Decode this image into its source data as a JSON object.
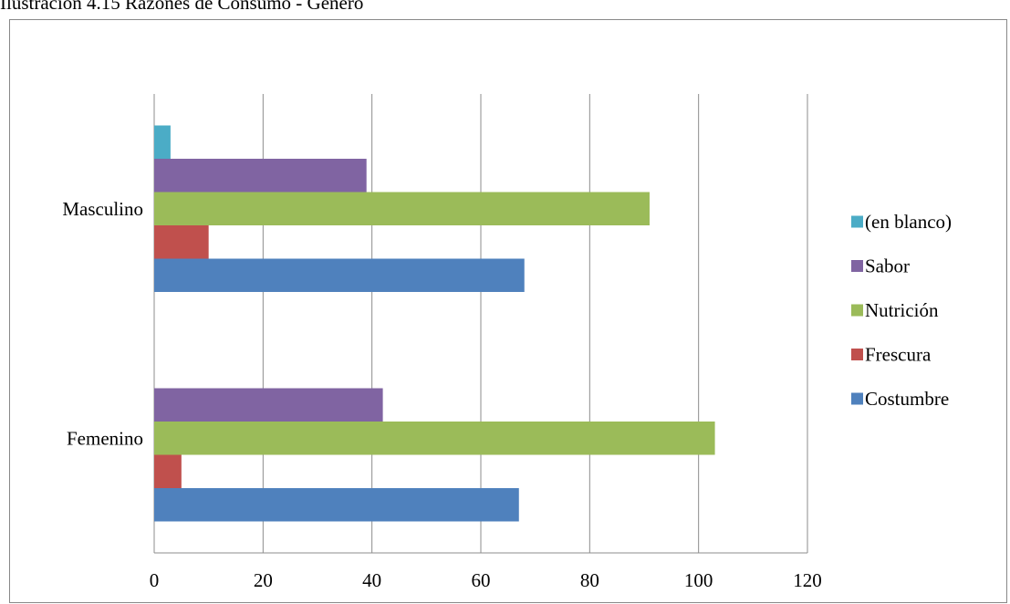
{
  "caption": "Ilustración 4.15 Razones de Consumo - Género",
  "chart_data": {
    "type": "bar",
    "orientation": "horizontal",
    "categories": [
      "Femenino",
      "Masculino"
    ],
    "series": [
      {
        "name": "Costumbre",
        "values": [
          67,
          68
        ],
        "color": "#4F81BD"
      },
      {
        "name": "Frescura",
        "values": [
          5,
          10
        ],
        "color": "#C0504D"
      },
      {
        "name": "Nutrición",
        "values": [
          103,
          91
        ],
        "color": "#9BBB59"
      },
      {
        "name": "Sabor",
        "values": [
          42,
          39
        ],
        "color": "#8064A2"
      },
      {
        "name": "(en blanco)",
        "values": [
          null,
          3
        ],
        "color": "#4BACC6"
      }
    ],
    "xlim": [
      0,
      120
    ],
    "xticks": [
      0,
      20,
      40,
      60,
      80,
      100,
      120
    ],
    "grid": true,
    "legend_position": "right",
    "title": "",
    "xlabel": "",
    "ylabel": ""
  }
}
